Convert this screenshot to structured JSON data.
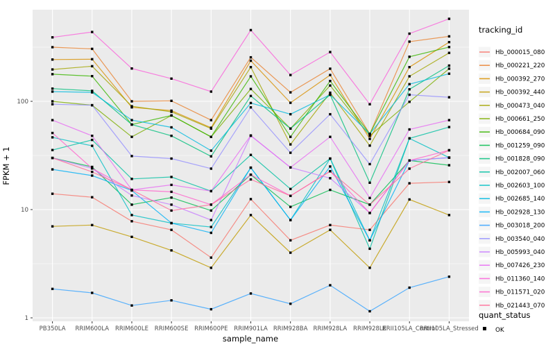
{
  "chart_data": {
    "type": "line",
    "title": "",
    "xlabel": "sample_name",
    "ylabel": "FPKM + 1",
    "y_scale": "log10",
    "ylim": [
      0.93,
      700
    ],
    "y_ticks": [
      1,
      10,
      100
    ],
    "y_tick_labels": [
      "1",
      "10",
      "100"
    ],
    "y_minor_ticks": [
      3.162,
      31.62,
      316.2
    ],
    "grid": true,
    "legend_position": "right",
    "legend_title": "tracking_id",
    "point_legend": {
      "title": "quant_status",
      "label": "OK"
    },
    "categories": [
      "PB350LA",
      "RRIM600LA",
      "RRIM600LE",
      "RRIM600SE",
      "RRIM600PE",
      "RRIM901LA",
      "RRIM928BA",
      "RRIM928LA",
      "RRIM928LE",
      "RRII105LA_Control",
      "RRII105LA_Stressed"
    ],
    "series": [
      {
        "name": "Hb_000015_080",
        "color": "#F8766D",
        "values": [
          14,
          13,
          7.8,
          6.5,
          3.6,
          12.5,
          5.2,
          7.2,
          6.5,
          17.5,
          18
        ]
      },
      {
        "name": "Hb_000221_220",
        "color": "#EA8331",
        "values": [
          316,
          305,
          100,
          101,
          67,
          255,
          121,
          200,
          50,
          356,
          398
        ]
      },
      {
        "name": "Hb_000392_270",
        "color": "#D89000",
        "values": [
          243,
          245,
          88,
          82,
          57,
          237,
          97,
          175,
          45,
          207,
          352
        ]
      },
      {
        "name": "Hb_000392_440",
        "color": "#C09B00",
        "values": [
          7,
          7.2,
          5.6,
          4.2,
          2.9,
          8.9,
          4.0,
          6.5,
          2.9,
          12.4,
          8.9
        ]
      },
      {
        "name": "Hb_000473_040",
        "color": "#A3A500",
        "values": [
          197,
          211,
          90,
          80,
          56,
          207,
          40,
          120,
          39,
          170,
          280
        ]
      },
      {
        "name": "Hb_000661_250",
        "color": "#7CAE00",
        "values": [
          100,
          92,
          47,
          74,
          47,
          130,
          56,
          140,
          48,
          99,
          200
        ]
      },
      {
        "name": "Hb_000684_090",
        "color": "#39B600",
        "values": [
          178,
          171,
          61,
          74,
          47,
          170,
          47,
          154,
          50,
          258,
          317
        ]
      },
      {
        "name": "Hb_001259_090",
        "color": "#00BB4E",
        "values": [
          30,
          24.8,
          11.1,
          12.9,
          9.8,
          21,
          10.6,
          15.2,
          11.1,
          28.4,
          25.7
        ]
      },
      {
        "name": "Hb_001828_090",
        "color": "#00BF7D",
        "values": [
          131,
          125,
          61,
          48,
          31,
          112,
          56,
          115,
          17.7,
          129,
          214
        ]
      },
      {
        "name": "Hb_002007_060",
        "color": "#00C1A3",
        "values": [
          35.5,
          44,
          19.2,
          20,
          14.8,
          32,
          15.5,
          29.6,
          4.35,
          45.5,
          57.8
        ]
      },
      {
        "name": "Hb_002603_100",
        "color": "#00BFC4",
        "values": [
          46.5,
          38.8,
          8.9,
          7.5,
          6.9,
          24.4,
          8.0,
          29.6,
          5.2,
          45.5,
          30.2
        ]
      },
      {
        "name": "Hb_002685_140",
        "color": "#00BAE0",
        "values": [
          123,
          121,
          67,
          57.5,
          35,
          96.5,
          76,
          115,
          50,
          144,
          180
        ]
      },
      {
        "name": "Hb_002928_130",
        "color": "#00B0F6",
        "values": [
          23.5,
          20.6,
          15,
          7.5,
          6.1,
          24.4,
          8.0,
          25,
          5.2,
          28.4,
          30.2
        ]
      },
      {
        "name": "Hb_003018_200",
        "color": "#35A2FF",
        "values": [
          1.85,
          1.7,
          1.3,
          1.45,
          1.2,
          1.68,
          1.35,
          2.0,
          1.15,
          1.9,
          2.4
        ]
      },
      {
        "name": "Hb_003540_040",
        "color": "#9590FF",
        "values": [
          94,
          92,
          31.2,
          29.6,
          23.9,
          88,
          33.5,
          76,
          26.3,
          115,
          109
        ]
      },
      {
        "name": "Hb_005993_040",
        "color": "#C77CFF",
        "values": [
          30,
          24,
          13.5,
          11.1,
          8.0,
          48,
          24.5,
          19.5,
          9.3,
          28.4,
          30.2
        ]
      },
      {
        "name": "Hb_007426_230",
        "color": "#E76BF3",
        "values": [
          67,
          48,
          15.2,
          16.9,
          14.8,
          48.4,
          24.5,
          47,
          12.8,
          55,
          67
        ]
      },
      {
        "name": "Hb_011360_140",
        "color": "#FA62DB",
        "values": [
          390,
          437,
          201,
          162,
          123,
          455,
          175,
          285,
          94,
          422,
          578
        ]
      },
      {
        "name": "Hb_011571_020",
        "color": "#FF61CC",
        "values": [
          51,
          24,
          15.2,
          14.6,
          11.1,
          21,
          13.4,
          22.6,
          9.3,
          28.4,
          35.3
        ]
      },
      {
        "name": "Hb_021443_070",
        "color": "#FF6A98",
        "values": [
          30,
          22.3,
          15.2,
          9.8,
          11.1,
          19,
          13.4,
          22.6,
          11.1,
          23.9,
          35.3
        ]
      }
    ]
  },
  "style": {
    "panel_bg": "#EBEBEB",
    "grid_color": "#FFFFFF",
    "marker_color": "#000000",
    "tick_text_color": "#4D4D4D",
    "title_text_color": "#000000",
    "legend_key_bg": "#F5F5F5"
  }
}
